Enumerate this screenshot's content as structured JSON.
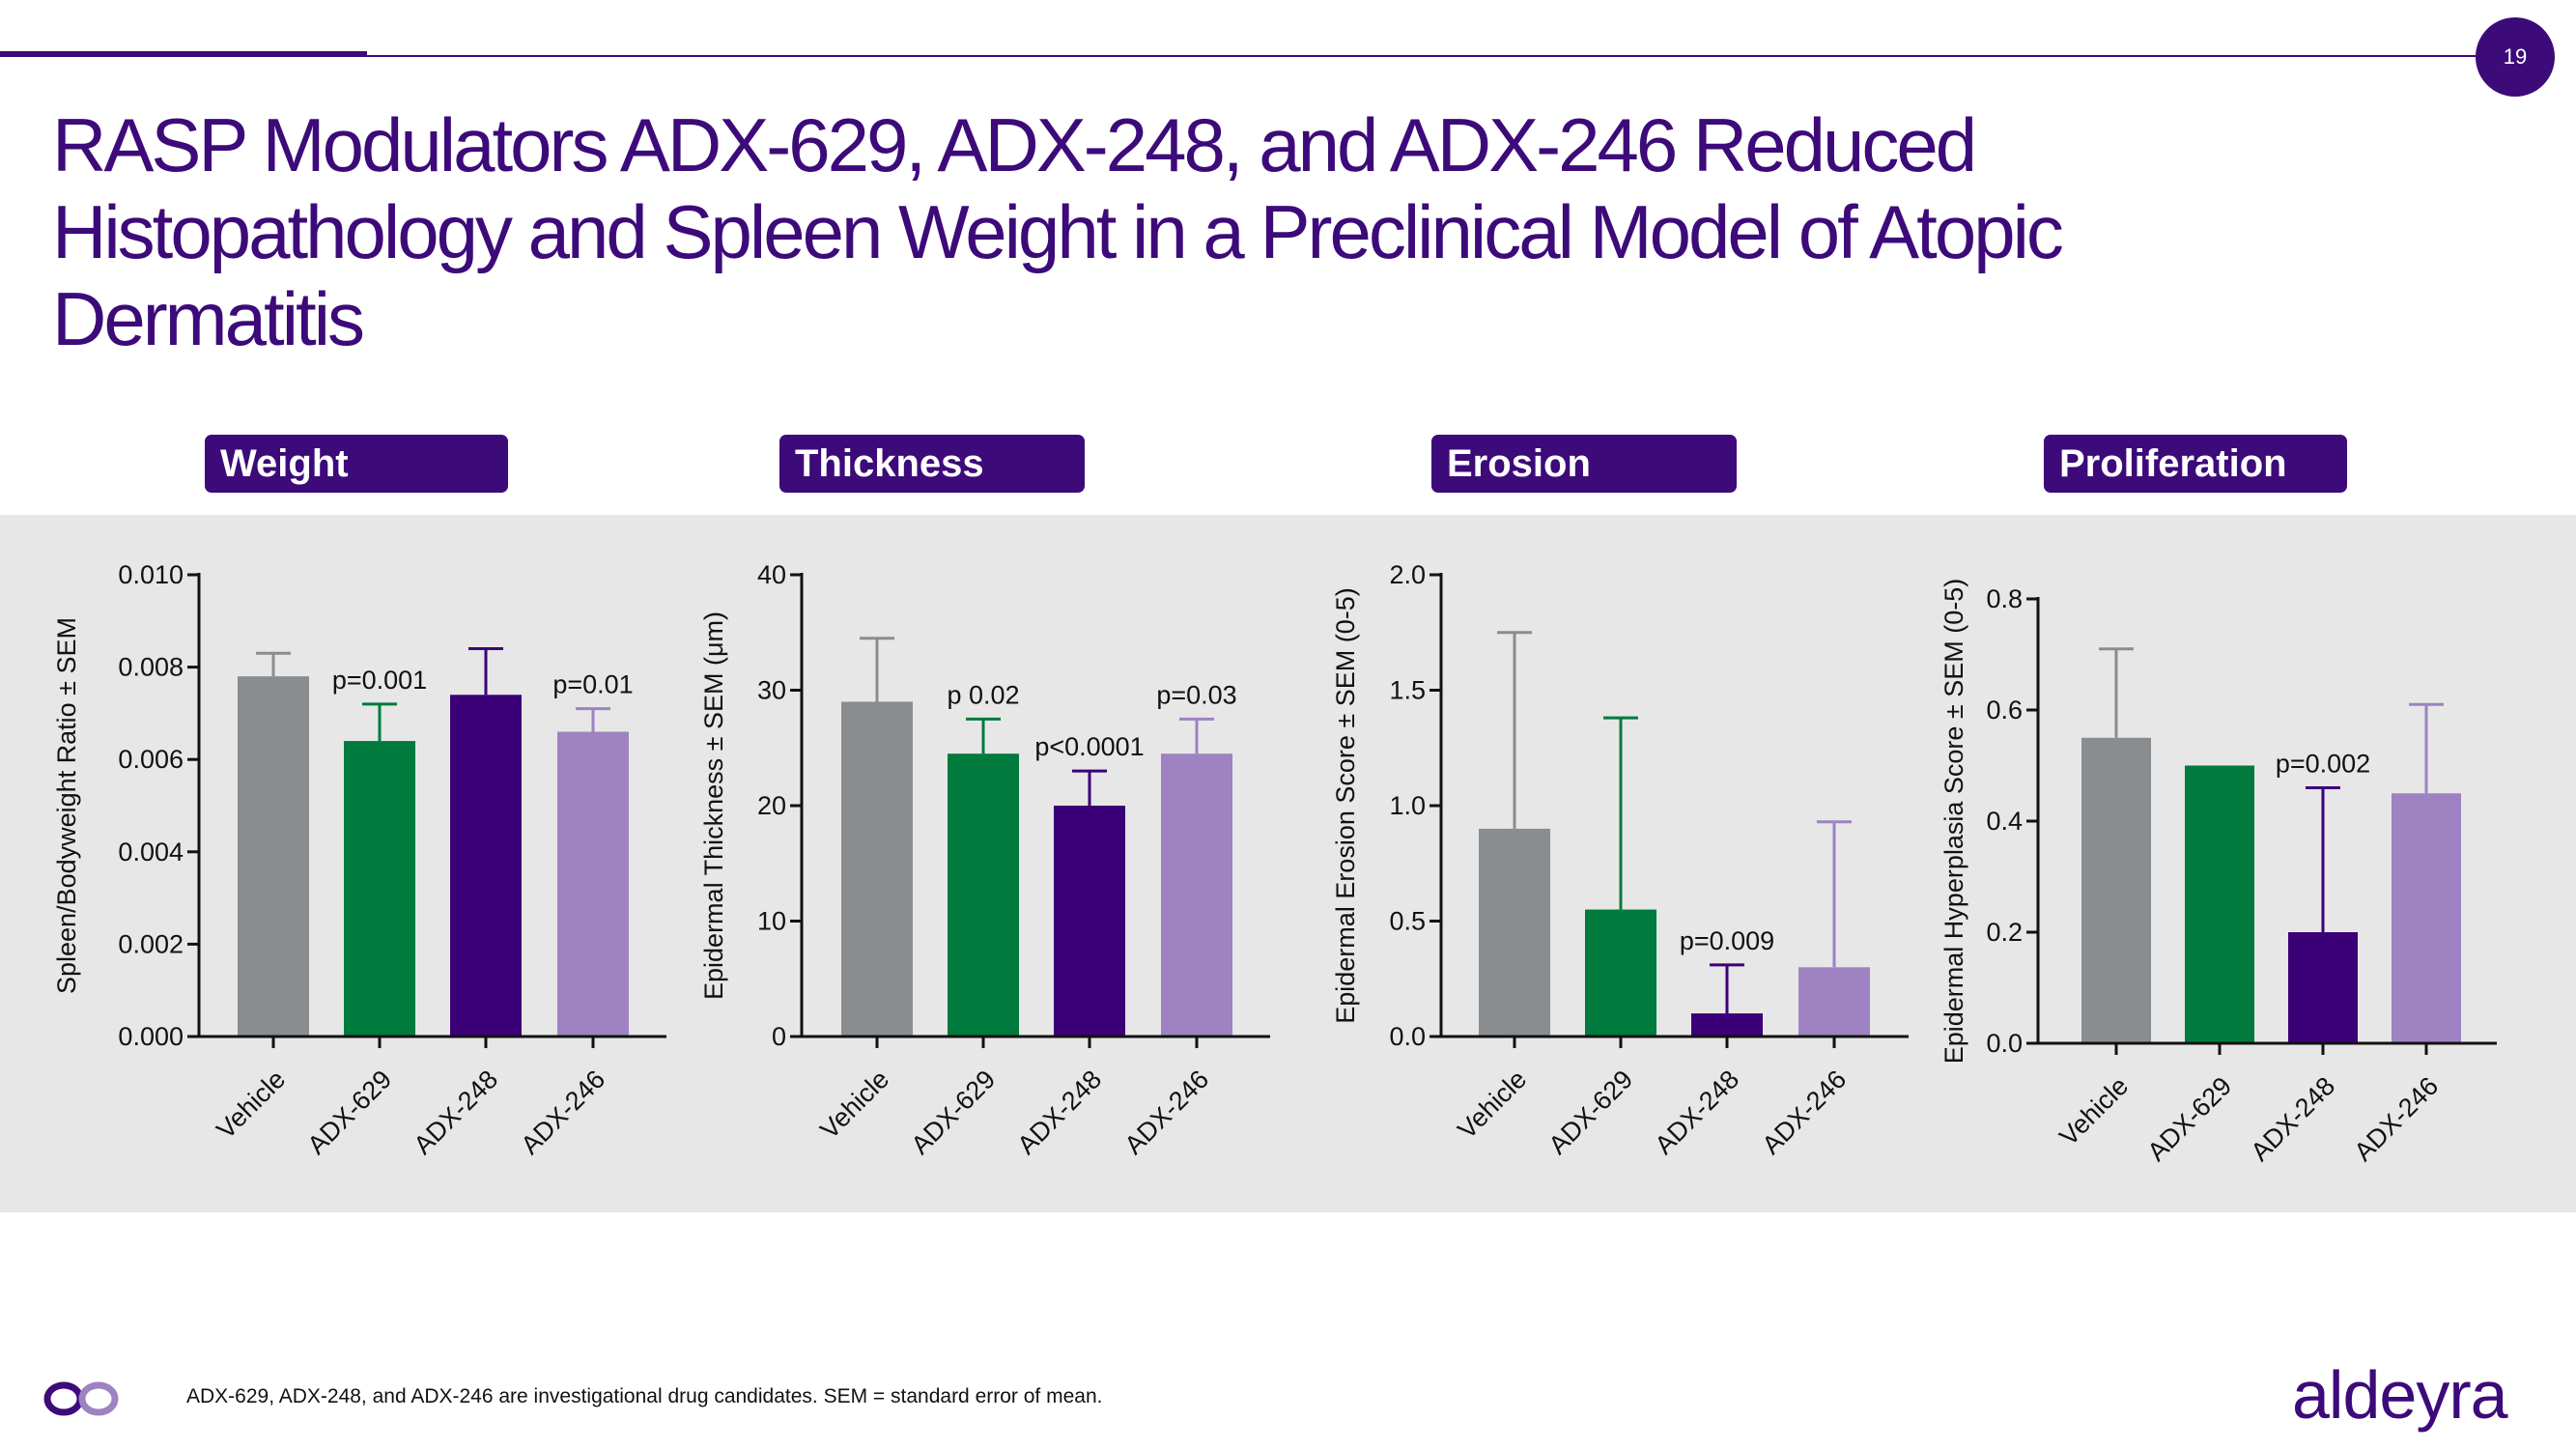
{
  "page_number": "19",
  "title": "RASP Modulators ADX-629, ADX-248, and ADX-246 Reduced Histopathology and Spleen Weight in a Preclinical Model of Atopic Dermatitis",
  "panel_labels": [
    "Weight",
    "Thickness",
    "Erosion",
    "Proliferation"
  ],
  "footnote": "ADX-629, ADX-248, and ADX-246 are investigational drug candidates. SEM = standard error of mean.",
  "brand": "aldeyra",
  "colors": {
    "Vehicle": "#8a8d8f",
    "ADX-629": "#007a3d",
    "ADX-248": "#3b0078",
    "ADX-246": "#9e82c2",
    "brand": "#3d0a7a"
  },
  "chart_data": [
    {
      "type": "bar",
      "title": "Weight",
      "categories": [
        "Vehicle",
        "ADX-629",
        "ADX-248",
        "ADX-246"
      ],
      "values": [
        0.0078,
        0.0064,
        0.0074,
        0.0066
      ],
      "errors": [
        0.0005,
        0.0008,
        0.001,
        0.0005
      ],
      "pvalues": [
        "",
        "p=0.001",
        "",
        "p=0.01"
      ],
      "ylabel": "Spleen/Bodyweight Ratio ± SEM",
      "ylim": [
        0,
        0.01
      ],
      "yticks": [
        0,
        0.002,
        0.004,
        0.006,
        0.008,
        0.01
      ],
      "yticklabels": [
        "0.000",
        "0.002",
        "0.004",
        "0.006",
        "0.008",
        "0.010"
      ]
    },
    {
      "type": "bar",
      "title": "Thickness",
      "categories": [
        "Vehicle",
        "ADX-629",
        "ADX-248",
        "ADX-246"
      ],
      "values": [
        29,
        24.5,
        20,
        24.5
      ],
      "errors": [
        5.5,
        3,
        3,
        3
      ],
      "pvalues": [
        "",
        "p 0.02",
        "p<0.0001",
        "p=0.03"
      ],
      "ylabel": "Epidermal Thickness ± SEM (μm)",
      "ylim": [
        0,
        40
      ],
      "yticks": [
        0,
        10,
        20,
        30,
        40
      ],
      "yticklabels": [
        "0",
        "10",
        "20",
        "30",
        "40"
      ]
    },
    {
      "type": "bar",
      "title": "Erosion",
      "categories": [
        "Vehicle",
        "ADX-629",
        "ADX-248",
        "ADX-246"
      ],
      "values": [
        0.9,
        0.55,
        0.1,
        0.3
      ],
      "errors": [
        0.85,
        0.83,
        0.21,
        0.63
      ],
      "pvalues": [
        "",
        "",
        "p=0.009",
        ""
      ],
      "ylabel": "Epidermal Erosion Score ± SEM (0-5)",
      "ylim": [
        0,
        2
      ],
      "yticks": [
        0,
        0.5,
        1,
        1.5,
        2
      ],
      "yticklabels": [
        "0.0",
        "0.5",
        "1.0",
        "1.5",
        "2.0"
      ]
    },
    {
      "type": "bar",
      "title": "Proliferation",
      "categories": [
        "Vehicle",
        "ADX-629",
        "ADX-248",
        "ADX-246"
      ],
      "values": [
        0.55,
        0.5,
        0.2,
        0.45
      ],
      "errors": [
        0.16,
        0,
        0.26,
        0.16
      ],
      "pvalues": [
        "",
        "",
        "p=0.002",
        ""
      ],
      "ylabel": "Epidermal Hyperplasia Score ± SEM (0-5)",
      "ylim": [
        0,
        0.8
      ],
      "yticks": [
        0,
        0.2,
        0.4,
        0.6,
        0.8
      ],
      "yticklabels": [
        "0.0",
        "0.2",
        "0.4",
        "0.6",
        "0.8"
      ]
    }
  ]
}
